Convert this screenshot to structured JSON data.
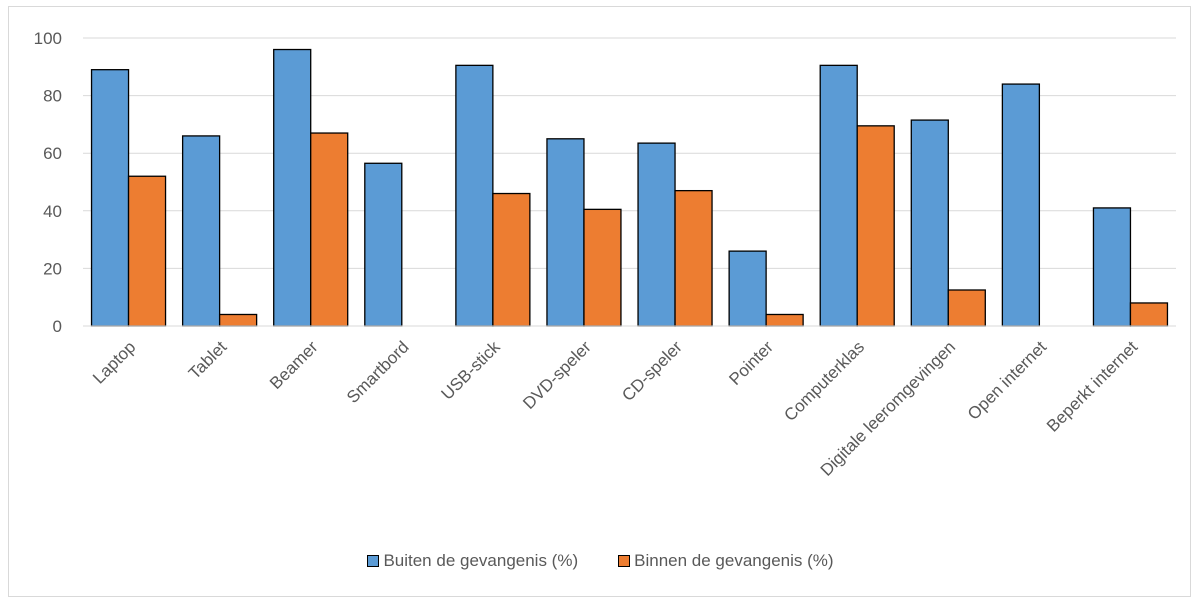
{
  "chart_data": {
    "type": "bar",
    "categories": [
      "Laptop",
      "Tablet",
      "Beamer",
      "Smartbord",
      "USB-stick",
      "DVD-speler",
      "CD-speler",
      "Pointer",
      "Computerklas",
      "Digitale leeromgevingen",
      "Open internet",
      "Beperkt internet"
    ],
    "series": [
      {
        "name": "Buiten de gevangenis (%)",
        "color": "#5b9bd5",
        "values": [
          89,
          66,
          96,
          56.5,
          90.5,
          65,
          63.5,
          26,
          90.5,
          71.5,
          84,
          41
        ]
      },
      {
        "name": "Binnen de gevangenis (%)",
        "color": "#ed7d31",
        "values": [
          52,
          4,
          67,
          null,
          46,
          40.5,
          47,
          4,
          69.5,
          12.5,
          null,
          8
        ]
      }
    ],
    "ylim": [
      0,
      100
    ],
    "yticks": [
      "0",
      "20",
      "40",
      "60",
      "80",
      "100"
    ],
    "grid": true,
    "legend_position": "bottom",
    "title": "",
    "xlabel": "",
    "ylabel": ""
  }
}
